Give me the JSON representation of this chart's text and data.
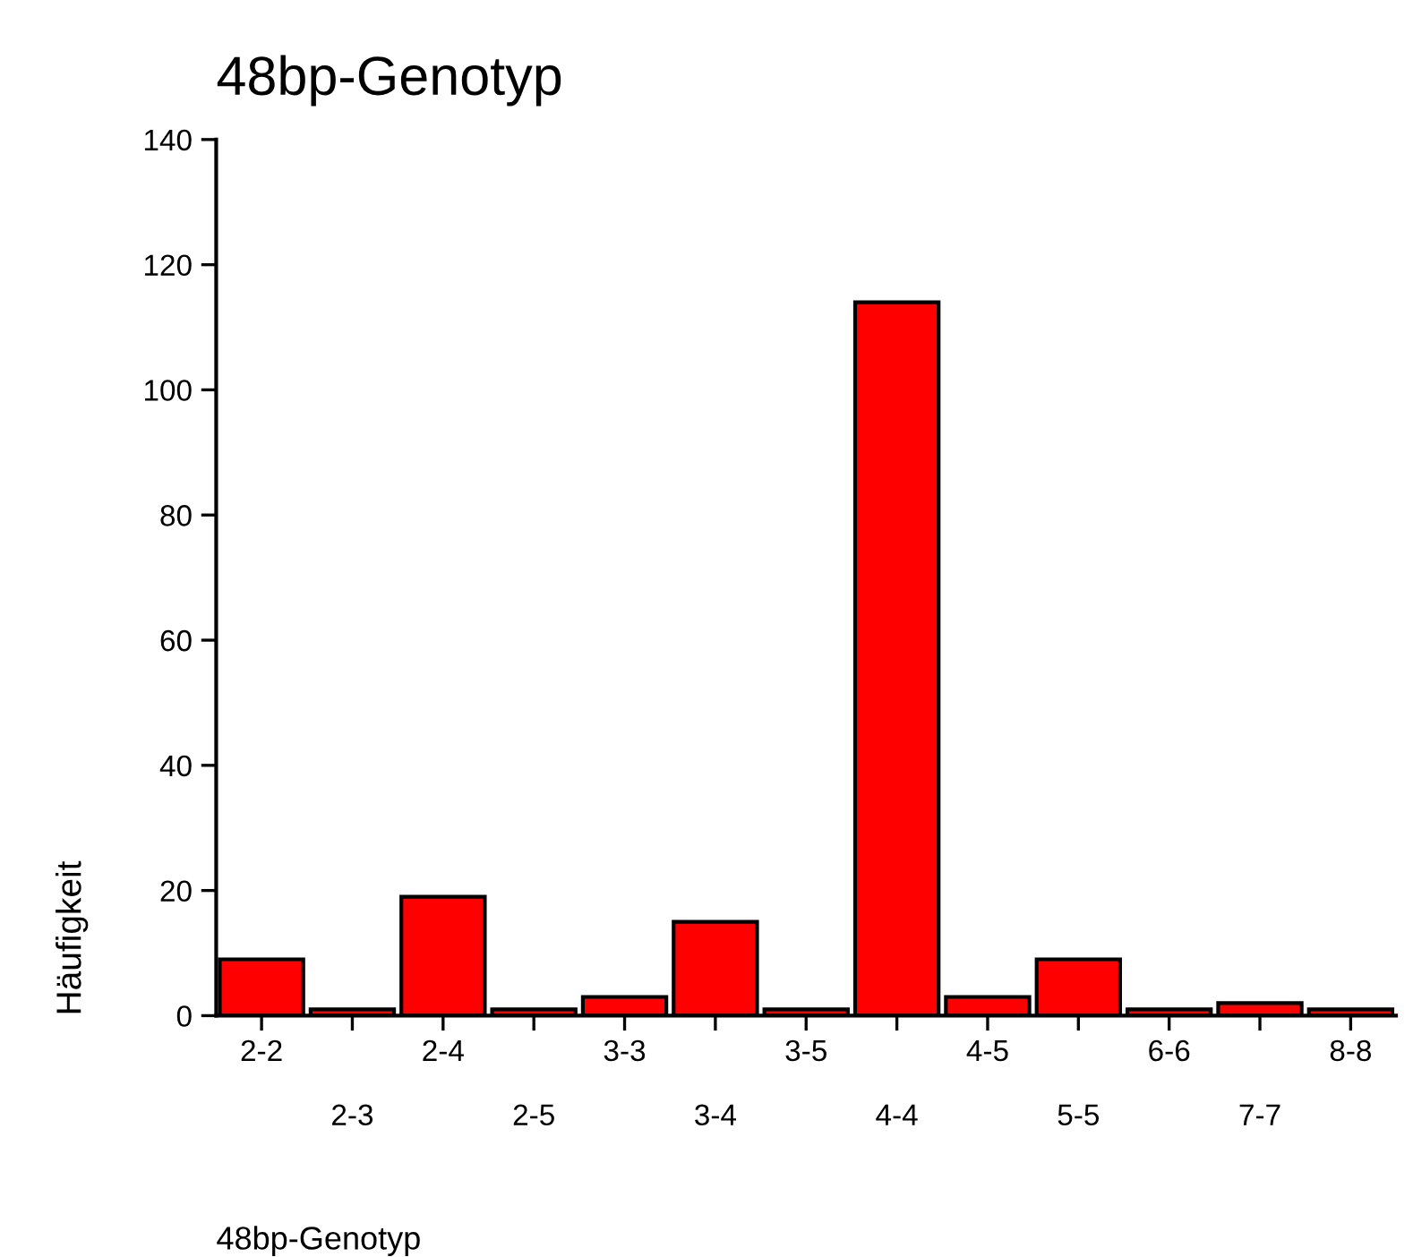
{
  "chart_data": {
    "type": "bar",
    "title": "48bp-Genotyp",
    "xlabel": "48bp-Genotyp",
    "ylabel": "Häufigkeit",
    "categories": [
      "2-2",
      "2-3",
      "2-4",
      "2-5",
      "3-3",
      "3-4",
      "3-5",
      "4-4",
      "4-5",
      "5-5",
      "6-6",
      "7-7",
      "8-8"
    ],
    "values": [
      9,
      1,
      19,
      1,
      3,
      15,
      1,
      114,
      3,
      9,
      1,
      2,
      1
    ],
    "color": "#ff0000",
    "ylim": [
      0,
      140
    ],
    "yticks": [
      0,
      20,
      40,
      60,
      80,
      100,
      120,
      140
    ],
    "grid": false
  }
}
